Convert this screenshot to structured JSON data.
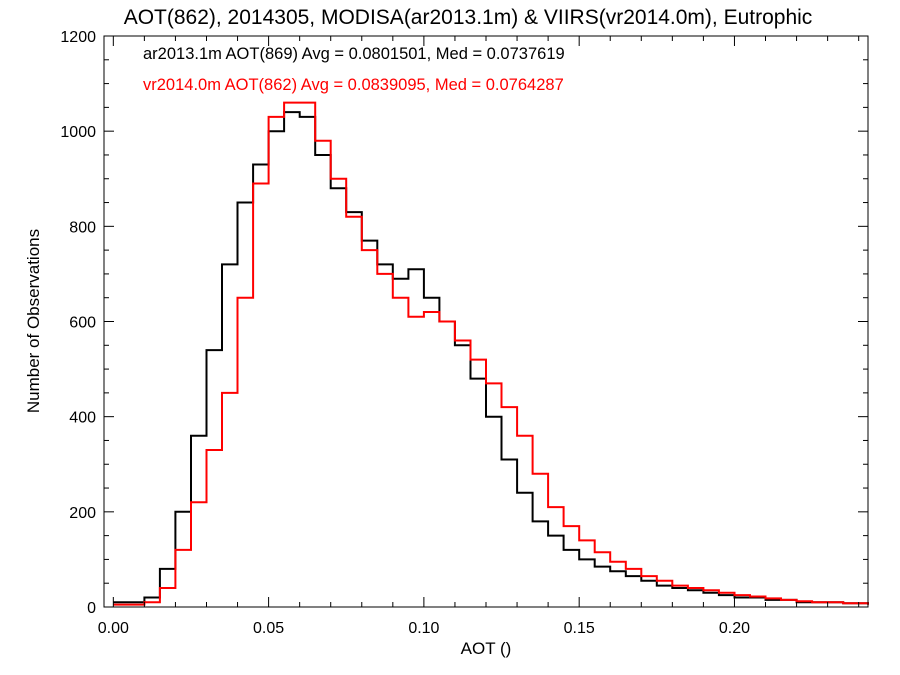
{
  "chart_data": {
    "type": "line",
    "title": "AOT(862), 2014305, MODISA(ar2013.1m) & VIIRS(vr2014.0m), Eutrophic",
    "xlabel": "AOT ()",
    "ylabel": "Number of Observations",
    "xlim": [
      -0.003,
      0.243
    ],
    "ylim": [
      0,
      1200
    ],
    "xticks": [
      0.0,
      0.05,
      0.1,
      0.15,
      0.2
    ],
    "xtick_labels": [
      "0.00",
      "0.05",
      "0.10",
      "0.15",
      "0.20"
    ],
    "yticks": [
      0,
      200,
      400,
      600,
      800,
      1000,
      1200
    ],
    "ytick_labels": [
      "0",
      "200",
      "400",
      "600",
      "800",
      "1000",
      "1200"
    ],
    "grid": false,
    "legend_position": "top-left",
    "annotations": [
      {
        "text": "ar2013.1m AOT(869) Avg = 0.0801501, Med = 0.0737619",
        "color": "#000000"
      },
      {
        "text": "vr2014.0m AOT(862) Avg = 0.0839095, Med = 0.0764287",
        "color": "#ff0000"
      }
    ],
    "series": [
      {
        "color": "#000000",
        "x": [
          0.0,
          0.005,
          0.01,
          0.015,
          0.02,
          0.025,
          0.03,
          0.035,
          0.04,
          0.045,
          0.05,
          0.055,
          0.06,
          0.065,
          0.07,
          0.075,
          0.08,
          0.085,
          0.09,
          0.095,
          0.1,
          0.105,
          0.11,
          0.115,
          0.12,
          0.125,
          0.13,
          0.135,
          0.14,
          0.145,
          0.15,
          0.155,
          0.16,
          0.165,
          0.17,
          0.175,
          0.18,
          0.185,
          0.19,
          0.195,
          0.2,
          0.205,
          0.21,
          0.215,
          0.22,
          0.225,
          0.23,
          0.235,
          0.24,
          0.243
        ],
        "values": [
          10,
          10,
          20,
          80,
          200,
          360,
          540,
          720,
          850,
          930,
          1000,
          1040,
          1030,
          950,
          880,
          830,
          770,
          720,
          690,
          710,
          650,
          600,
          550,
          480,
          400,
          310,
          240,
          180,
          150,
          120,
          100,
          85,
          75,
          65,
          55,
          45,
          40,
          35,
          30,
          25,
          20,
          20,
          15,
          15,
          10,
          10,
          10,
          8,
          8,
          5
        ]
      },
      {
        "color": "#ff0000",
        "x": [
          0.0,
          0.005,
          0.01,
          0.015,
          0.02,
          0.025,
          0.03,
          0.035,
          0.04,
          0.045,
          0.05,
          0.055,
          0.06,
          0.065,
          0.07,
          0.075,
          0.08,
          0.085,
          0.09,
          0.095,
          0.1,
          0.105,
          0.11,
          0.115,
          0.12,
          0.125,
          0.13,
          0.135,
          0.14,
          0.145,
          0.15,
          0.155,
          0.16,
          0.165,
          0.17,
          0.175,
          0.18,
          0.185,
          0.19,
          0.195,
          0.2,
          0.205,
          0.21,
          0.215,
          0.22,
          0.225,
          0.23,
          0.235,
          0.24,
          0.243
        ],
        "values": [
          5,
          5,
          10,
          40,
          120,
          220,
          330,
          450,
          650,
          890,
          1030,
          1060,
          1060,
          980,
          900,
          820,
          750,
          700,
          650,
          610,
          620,
          600,
          560,
          520,
          470,
          420,
          360,
          280,
          210,
          170,
          140,
          115,
          95,
          80,
          65,
          55,
          45,
          40,
          35,
          30,
          25,
          22,
          18,
          15,
          12,
          10,
          10,
          8,
          8,
          5
        ]
      }
    ]
  }
}
